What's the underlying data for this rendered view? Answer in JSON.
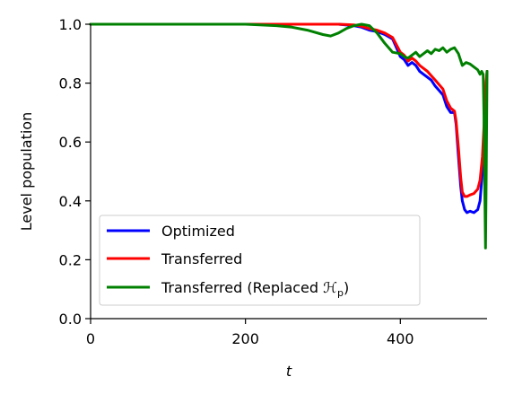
{
  "chart_data": {
    "type": "line",
    "title": "",
    "xlabel": "t",
    "ylabel": "Level population",
    "xlim": [
      0,
      512
    ],
    "ylim": [
      0.0,
      1.0
    ],
    "grid": false,
    "legend_position": "lower-left",
    "x_ticks": [
      0,
      200,
      400
    ],
    "x_tick_labels": [
      "0",
      "200",
      "400"
    ],
    "y_ticks": [
      0.0,
      0.2,
      0.4,
      0.6,
      0.8,
      1.0
    ],
    "y_tick_labels": [
      "0.0",
      "0.2",
      "0.4",
      "0.6",
      "0.8",
      "1.0"
    ],
    "series": [
      {
        "name": "Optimized",
        "color": "#0000ff",
        "x": [
          0,
          100,
          200,
          240,
          280,
          320,
          340,
          350,
          360,
          370,
          380,
          390,
          395,
          400,
          405,
          410,
          415,
          420,
          425,
          430,
          435,
          440,
          445,
          450,
          455,
          460,
          465,
          470,
          472,
          475,
          478,
          480,
          483,
          486,
          490,
          495,
          500,
          503,
          506,
          508,
          510,
          512
        ],
        "y": [
          1.0,
          1.0,
          1.0,
          1.0,
          1.0,
          1.0,
          0.995,
          0.99,
          0.98,
          0.975,
          0.965,
          0.95,
          0.92,
          0.89,
          0.88,
          0.86,
          0.87,
          0.86,
          0.84,
          0.83,
          0.82,
          0.81,
          0.79,
          0.775,
          0.76,
          0.72,
          0.7,
          0.7,
          0.66,
          0.55,
          0.45,
          0.4,
          0.37,
          0.36,
          0.365,
          0.36,
          0.37,
          0.4,
          0.5,
          0.6,
          0.75,
          0.84
        ]
      },
      {
        "name": "Transferred",
        "color": "#ff0000",
        "x": [
          0,
          100,
          200,
          240,
          280,
          320,
          340,
          350,
          360,
          370,
          380,
          390,
          395,
          400,
          405,
          410,
          415,
          420,
          425,
          430,
          435,
          440,
          445,
          450,
          455,
          460,
          465,
          470,
          472,
          475,
          478,
          480,
          483,
          486,
          490,
          495,
          500,
          503,
          506,
          508,
          510,
          512
        ],
        "y": [
          1.0,
          1.0,
          1.0,
          1.0,
          1.0,
          1.0,
          0.998,
          0.993,
          0.985,
          0.98,
          0.97,
          0.955,
          0.93,
          0.905,
          0.895,
          0.875,
          0.885,
          0.875,
          0.86,
          0.85,
          0.84,
          0.825,
          0.81,
          0.795,
          0.78,
          0.74,
          0.715,
          0.705,
          0.67,
          0.58,
          0.48,
          0.43,
          0.415,
          0.415,
          0.42,
          0.425,
          0.44,
          0.47,
          0.55,
          0.65,
          0.78,
          0.84
        ]
      },
      {
        "name": "Transferred (Replaced ℋ_p)",
        "legend_prefix": "Transferred (Replaced ",
        "legend_symbol": "ℋ",
        "legend_subscript": "p",
        "legend_suffix": ")",
        "color": "#008000",
        "x": [
          0,
          100,
          200,
          240,
          260,
          280,
          300,
          310,
          320,
          330,
          340,
          350,
          360,
          370,
          380,
          390,
          400,
          405,
          410,
          415,
          420,
          425,
          430,
          435,
          440,
          445,
          450,
          455,
          460,
          465,
          470,
          475,
          480,
          485,
          490,
          495,
          500,
          503,
          505,
          507,
          508,
          509,
          510,
          511,
          512
        ],
        "y": [
          1.0,
          1.0,
          1.0,
          0.995,
          0.99,
          0.98,
          0.965,
          0.96,
          0.97,
          0.985,
          0.995,
          1.0,
          0.995,
          0.97,
          0.935,
          0.905,
          0.9,
          0.89,
          0.885,
          0.895,
          0.905,
          0.89,
          0.9,
          0.91,
          0.9,
          0.915,
          0.91,
          0.92,
          0.905,
          0.915,
          0.92,
          0.9,
          0.86,
          0.87,
          0.865,
          0.855,
          0.845,
          0.83,
          0.84,
          0.83,
          0.7,
          0.45,
          0.24,
          0.5,
          0.84
        ]
      }
    ]
  }
}
